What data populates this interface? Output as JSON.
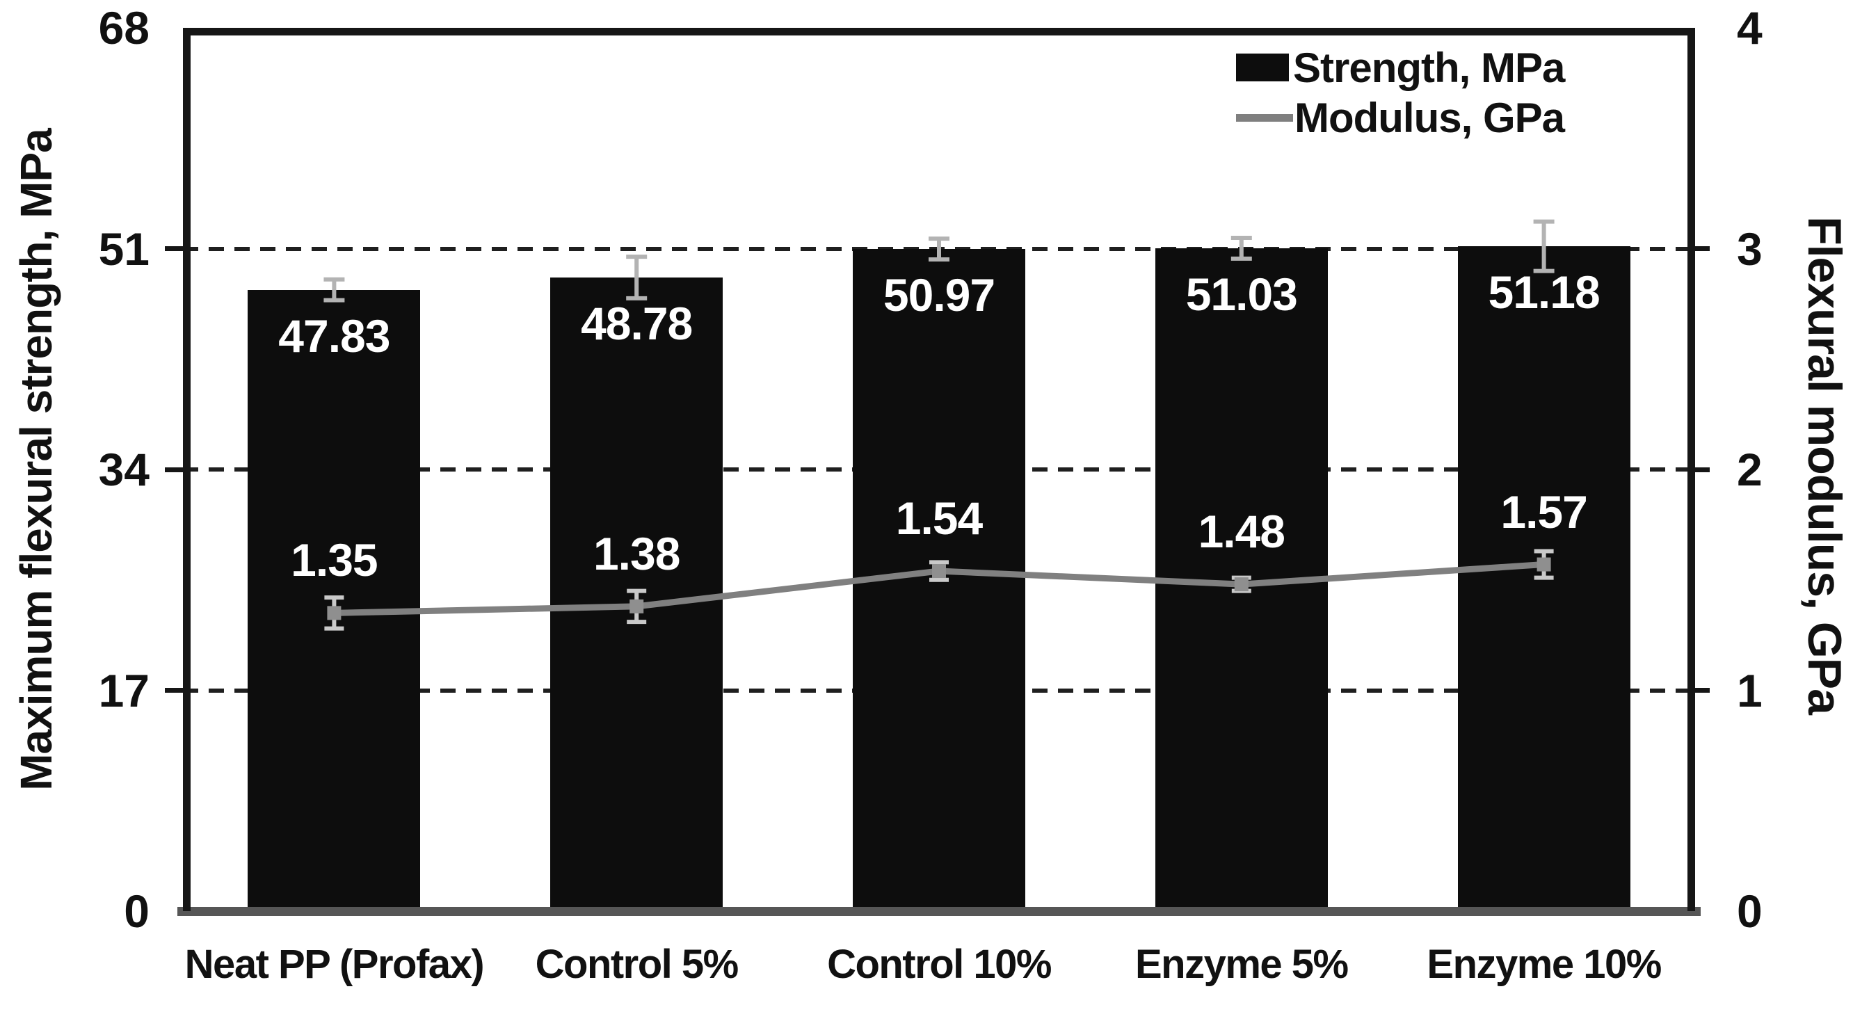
{
  "figure": {
    "background": "#ffffff"
  },
  "chart_data": {
    "type": "bar",
    "subtype": "bar-line-combo",
    "categories": [
      "Neat PP (Profax)",
      "Control 5%",
      "Control 10%",
      "Enzyme 5%",
      "Enzyme 10%"
    ],
    "series": [
      {
        "name": "Strength, MPa",
        "type": "bar",
        "axis": "left",
        "color": "#0d0d0d",
        "values": [
          47.83,
          48.78,
          50.97,
          51.03,
          51.18
        ],
        "errors": [
          0.8,
          1.6,
          0.8,
          0.8,
          1.9
        ],
        "value_labels": [
          "47.83",
          "48.78",
          "50.97",
          "51.03",
          "51.18"
        ]
      },
      {
        "name": "Modulus, GPa",
        "type": "line",
        "axis": "right",
        "color": "#808080",
        "values": [
          1.35,
          1.38,
          1.54,
          1.48,
          1.57
        ],
        "errors": [
          0.07,
          0.07,
          0.04,
          0.03,
          0.06
        ],
        "value_labels": [
          "1.35",
          "1.38",
          "1.54",
          "1.48",
          "1.57"
        ]
      }
    ],
    "left_axis": {
      "label": "Maximum flexural strength, MPa",
      "min": 0,
      "max": 68,
      "ticks": [
        0,
        17,
        34,
        51,
        68
      ]
    },
    "right_axis": {
      "label": "Flexural modulus, GPa",
      "min": 0,
      "max": 4,
      "ticks": [
        0,
        1,
        2,
        3,
        4
      ]
    },
    "gridlines": {
      "left_values": [
        17,
        34,
        51
      ],
      "style": "dashed",
      "color": "#1f1f1f"
    },
    "legend": {
      "position": "top-right",
      "entries": [
        {
          "label": "Strength, MPa",
          "swatch": "bar"
        },
        {
          "label": "Modulus, GPa",
          "swatch": "line"
        }
      ]
    },
    "error_bar_color": "#b3b3b3",
    "baseline_color": "#565656"
  }
}
